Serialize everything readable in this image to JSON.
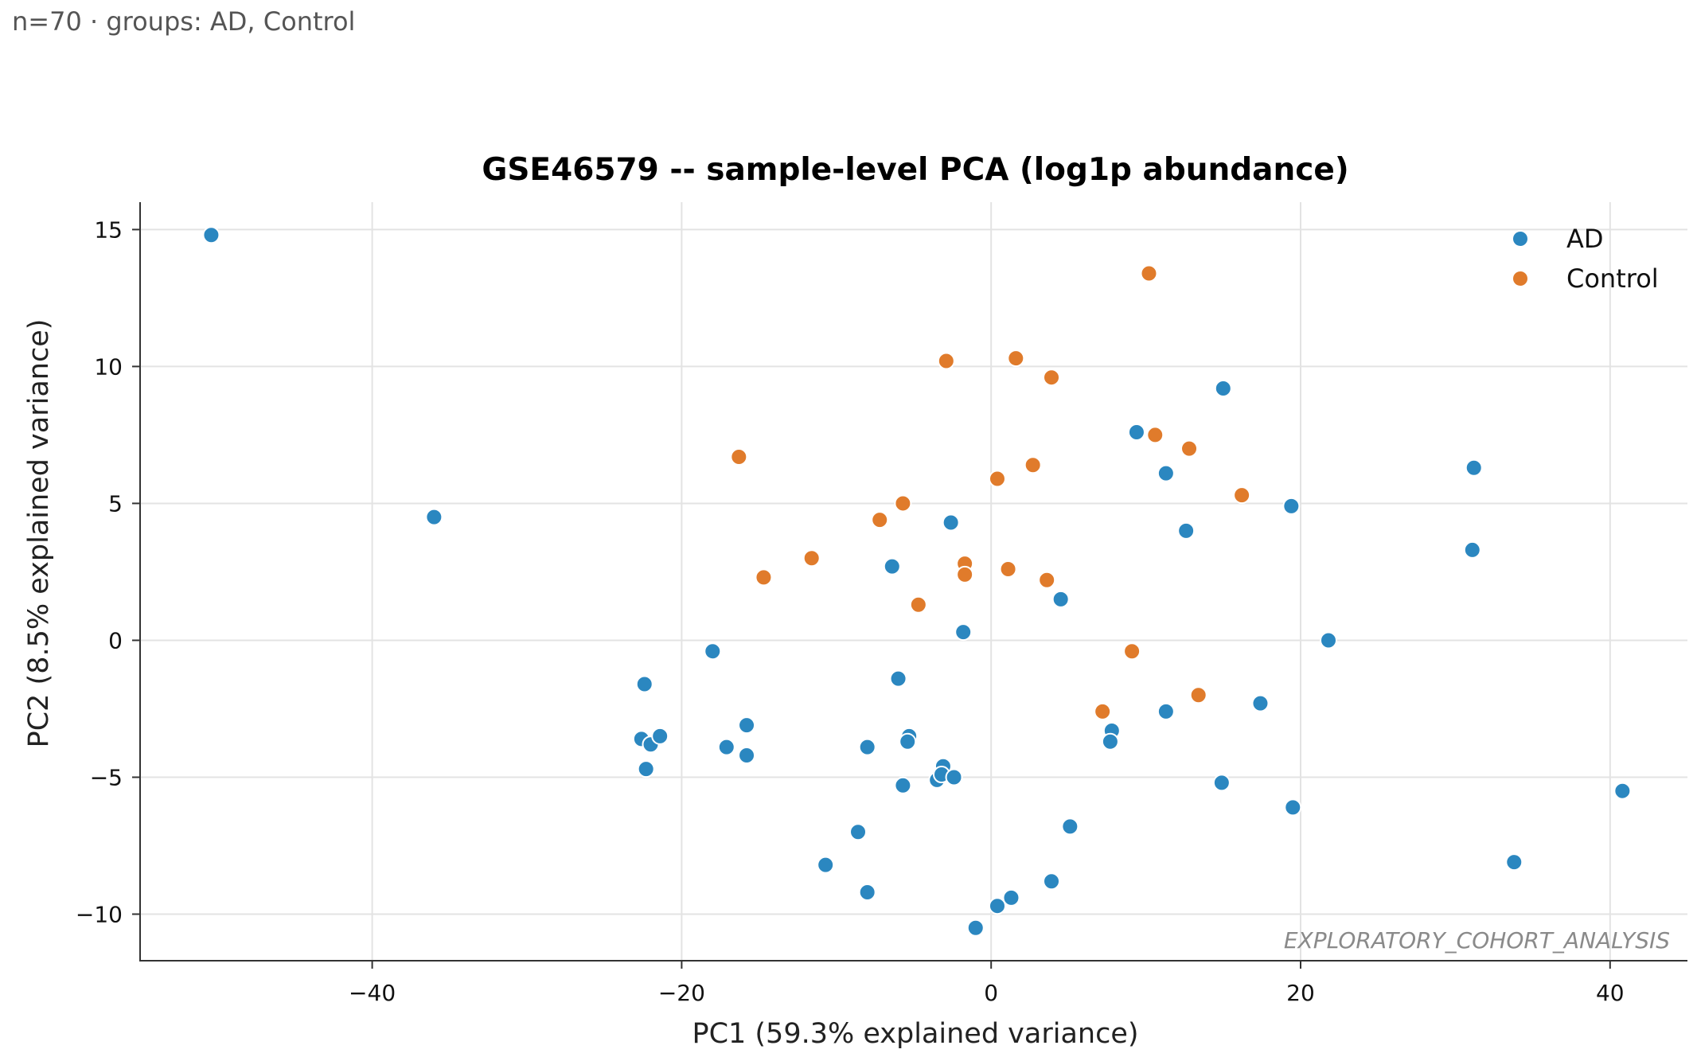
{
  "caption": "n=70 · groups: AD, Control",
  "chart_data": {
    "type": "scatter",
    "title": "GSE46579 -- sample-level PCA (log1p abundance)",
    "xlabel": "PC1 (59.3% explained variance)",
    "ylabel": "PC2 (8.5% explained variance)",
    "xlim": [
      -55,
      45
    ],
    "ylim": [
      -11.7,
      16
    ],
    "xticks": [
      -40,
      -20,
      0,
      20,
      40
    ],
    "xtick_labels": [
      "−40",
      "−20",
      "0",
      "20",
      "40"
    ],
    "yticks": [
      -10,
      -5,
      0,
      5,
      10,
      15
    ],
    "ytick_labels": [
      "−10",
      "−5",
      "0",
      "5",
      "10",
      "15"
    ],
    "grid": true,
    "legend_position": "top-right",
    "watermark": "EXPLORATORY_COHORT_ANALYSIS",
    "series": [
      {
        "name": "AD",
        "color": "#2b87c0",
        "points": [
          [
            -50.4,
            14.8
          ],
          [
            -36.0,
            4.5
          ],
          [
            -22.4,
            -1.6
          ],
          [
            -22.6,
            -3.6
          ],
          [
            -22.0,
            -3.8
          ],
          [
            -21.4,
            -3.5
          ],
          [
            -22.3,
            -4.7
          ],
          [
            -18.0,
            -0.4
          ],
          [
            -17.1,
            -3.9
          ],
          [
            -15.8,
            -3.1
          ],
          [
            -15.8,
            -4.2
          ],
          [
            -10.7,
            -8.2
          ],
          [
            -8.6,
            -7.0
          ],
          [
            -8.0,
            -3.9
          ],
          [
            -8.0,
            -9.2
          ],
          [
            -6.4,
            2.7
          ],
          [
            -6.0,
            -1.4
          ],
          [
            -5.7,
            -5.3
          ],
          [
            -5.3,
            -3.5
          ],
          [
            -5.4,
            -3.7
          ],
          [
            -3.5,
            -5.1
          ],
          [
            -3.1,
            -4.6
          ],
          [
            -3.2,
            -4.9
          ],
          [
            -2.6,
            4.3
          ],
          [
            -2.4,
            -5.0
          ],
          [
            -1.8,
            0.3
          ],
          [
            -1.0,
            -10.5
          ],
          [
            0.4,
            -9.7
          ],
          [
            1.3,
            -9.4
          ],
          [
            3.9,
            -8.8
          ],
          [
            4.5,
            1.5
          ],
          [
            5.1,
            -6.8
          ],
          [
            7.8,
            -3.3
          ],
          [
            7.7,
            -3.7
          ],
          [
            9.4,
            7.6
          ],
          [
            11.3,
            6.1
          ],
          [
            11.3,
            -2.6
          ],
          [
            12.6,
            4.0
          ],
          [
            14.9,
            -5.2
          ],
          [
            15.0,
            9.2
          ],
          [
            17.4,
            -2.3
          ],
          [
            19.4,
            4.9
          ],
          [
            19.5,
            -6.1
          ],
          [
            21.8,
            0.0
          ],
          [
            31.2,
            6.3
          ],
          [
            31.1,
            3.3
          ],
          [
            33.8,
            -8.1
          ],
          [
            40.8,
            -5.5
          ]
        ]
      },
      {
        "name": "Control",
        "color": "#e07b2b",
        "points": [
          [
            10.2,
            13.4
          ],
          [
            -2.9,
            10.2
          ],
          [
            1.6,
            10.3
          ],
          [
            3.9,
            9.6
          ],
          [
            10.6,
            7.5
          ],
          [
            12.8,
            7.0
          ],
          [
            -16.3,
            6.7
          ],
          [
            2.7,
            6.4
          ],
          [
            0.4,
            5.9
          ],
          [
            -5.7,
            5.0
          ],
          [
            16.2,
            5.3
          ],
          [
            -7.2,
            4.4
          ],
          [
            -11.6,
            3.0
          ],
          [
            -14.7,
            2.3
          ],
          [
            -1.7,
            2.8
          ],
          [
            -1.7,
            2.4
          ],
          [
            1.1,
            2.6
          ],
          [
            3.6,
            2.2
          ],
          [
            -4.7,
            1.3
          ],
          [
            9.1,
            -0.4
          ],
          [
            13.4,
            -2.0
          ],
          [
            7.2,
            -2.6
          ]
        ]
      }
    ]
  }
}
